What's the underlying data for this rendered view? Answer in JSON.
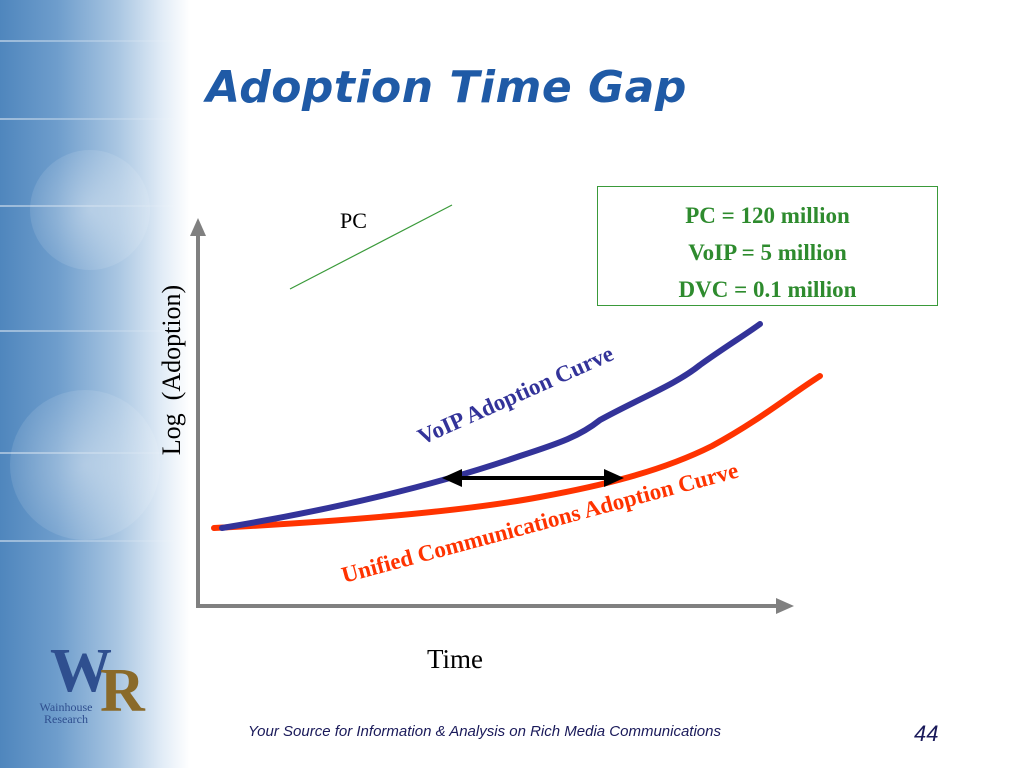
{
  "slide": {
    "title": "Adoption Time Gap",
    "footer": "Your Source for Information & Analysis on Rich Media Communications",
    "page_number": "44"
  },
  "legend_box": {
    "lines": [
      "PC = 120 million",
      "VoIP = 5 million",
      "DVC = 0.1 million"
    ],
    "color": "#2e8b2e"
  },
  "diagram": {
    "y_axis_label": "Log  (Adoption)",
    "x_axis_label": "Time",
    "pc_label": "PC",
    "voip_curve_label": "VoIP Adoption Curve",
    "uc_curve_label": "Unified Communications Adoption Curve",
    "colors": {
      "pc_line": "#3a9a3a",
      "voip_curve": "#333399",
      "uc_curve": "#ff3300",
      "axes": "#808080",
      "gap_arrow": "#000000"
    }
  },
  "logo": {
    "letters": "WR",
    "line1": "Wainhouse",
    "line2": "Research"
  }
}
